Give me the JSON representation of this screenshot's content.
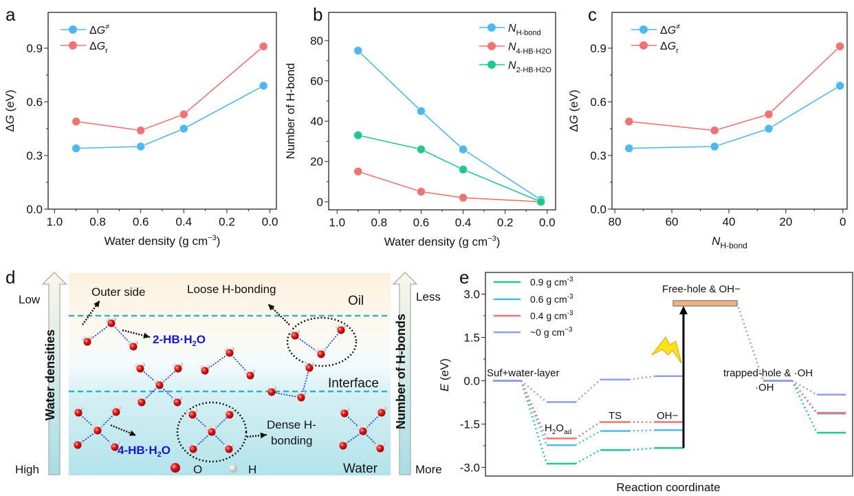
{
  "panel_labels": [
    "a",
    "b",
    "c",
    "d",
    "e"
  ],
  "colors": {
    "blue": "#4db8f0",
    "red": "#f07272",
    "green": "#1fc98a",
    "purple": "#8f9cf5",
    "orange": "#f0b080",
    "dash": "#2ab5c8",
    "hb": "#1a3cf0"
  },
  "chart_data": [
    {
      "panel": "a",
      "type": "line",
      "xlabel": "Water density (g cm",
      "xlabel_sup": "−3",
      "xlabel_end": ")",
      "ylabel_delta": "Δ",
      "ylabel_sym": "G",
      "ylabel_end": " (eV)",
      "xlim": [
        1.03,
        -0.03
      ],
      "ylim": [
        0,
        1.1
      ],
      "xticks": [
        1.0,
        0.8,
        0.6,
        0.4,
        0.2,
        0.0
      ],
      "yticks": [
        0.0,
        0.3,
        0.6,
        0.9
      ],
      "x": [
        0.9,
        0.6,
        0.4,
        0.03
      ],
      "series": [
        {
          "name": "ΔG",
          "sup": "≠",
          "color": "#4db8f0",
          "values": [
            0.34,
            0.35,
            0.45,
            0.69
          ]
        },
        {
          "name": "ΔG",
          "sub": "r",
          "color": "#f07272",
          "values": [
            0.49,
            0.44,
            0.53,
            0.91
          ]
        }
      ]
    },
    {
      "panel": "b",
      "type": "line",
      "xlabel": "Water density (g cm",
      "xlabel_sup": "−3",
      "xlabel_end": ")",
      "ylabel": "Number of H-bond",
      "xlim": [
        1.04,
        -0.04
      ],
      "ylim": [
        -4,
        94
      ],
      "xticks": [
        1.0,
        0.8,
        0.6,
        0.4,
        0.2,
        0.0
      ],
      "yticks": [
        0,
        20,
        40,
        60,
        80
      ],
      "x": [
        0.9,
        0.6,
        0.4,
        0.03
      ],
      "series": [
        {
          "name": "N",
          "sub": "H-bond",
          "color": "#4db8f0",
          "values": [
            75,
            45,
            26,
            1
          ]
        },
        {
          "name": "N",
          "sub": "4-HB·H2O",
          "color": "#f07272",
          "values": [
            15,
            5,
            2,
            0
          ]
        },
        {
          "name": "N",
          "sub": "2-HB·H2O",
          "color": "#1fc98a",
          "values": [
            33,
            26,
            16,
            0
          ]
        }
      ]
    },
    {
      "panel": "c",
      "type": "line",
      "xlabel_sym": "N",
      "xlabel_sub": "H-bond",
      "ylabel_delta": "Δ",
      "ylabel_sym": "G",
      "ylabel_end": " (eV)",
      "xlim": [
        81,
        -1.5
      ],
      "ylim": [
        0,
        1.1
      ],
      "xticks": [
        80,
        60,
        40,
        20,
        0
      ],
      "yticks": [
        0.0,
        0.3,
        0.6,
        0.9
      ],
      "x": [
        75,
        45,
        26,
        1
      ],
      "series": [
        {
          "name": "ΔG",
          "sup": "≠",
          "color": "#4db8f0",
          "values": [
            0.34,
            0.35,
            0.45,
            0.69
          ]
        },
        {
          "name": "ΔG",
          "sub": "r",
          "color": "#f07272",
          "values": [
            0.49,
            0.44,
            0.53,
            0.91
          ]
        }
      ]
    },
    {
      "panel": "e",
      "type": "energy-level",
      "xlabel": "Reaction coordinate",
      "ylabel_sym": "E",
      "ylabel_end": " (eV)",
      "ylim": [
        -3.3,
        3.75
      ],
      "yticks": [
        3.0,
        1.5,
        0.0,
        -1.5,
        -3.0
      ],
      "states": [
        "Suf+water-layer",
        "H2Oad",
        "TS",
        "OH−",
        "trapped-hole & ·OH",
        "·OH"
      ],
      "free_hole": {
        "label": "Free-hole & OH−",
        "value": 2.68
      },
      "series": [
        {
          "name": "0.9 g cm",
          "sup": "-3",
          "color": "#1fc98a",
          "values": [
            0,
            -2.87,
            -2.4,
            -2.33,
            0,
            -1.8
          ]
        },
        {
          "name": "0.6 g cm",
          "sup": "-3",
          "color": "#4db8f0",
          "values": [
            0,
            -2.23,
            -1.74,
            -1.71,
            0,
            -1.14
          ]
        },
        {
          "name": "0.4 g cm",
          "sup": "-3",
          "color": "#f07272",
          "values": [
            0,
            -2.0,
            -1.43,
            -1.43,
            0,
            -1.11
          ]
        },
        {
          "name": "~0 g cm",
          "sup": "−3",
          "color": "#8f9cf5",
          "values": [
            0,
            -0.74,
            0.04,
            0.16,
            0,
            -0.48
          ]
        }
      ]
    }
  ],
  "diagram_d": {
    "outer_side": "Outer side",
    "loose": "Loose H-bonding",
    "oil": "Oil",
    "two_hb": "2-HB·H",
    "two_hb_sub": "2",
    "two_hb_end": "O",
    "interface": "Interface",
    "dense1": "Dense H-",
    "dense2": "bonding",
    "four_hb": "4-HB·H",
    "four_hb_sub": "2",
    "four_hb_end": "O",
    "legend_o": "O",
    "legend_h": "H",
    "water": "Water",
    "left_axis": "Water densities",
    "left_top": "Low",
    "left_bottom": "High",
    "right_axis": "Number of H-bonds",
    "right_top": "Less",
    "right_bottom": "More"
  }
}
